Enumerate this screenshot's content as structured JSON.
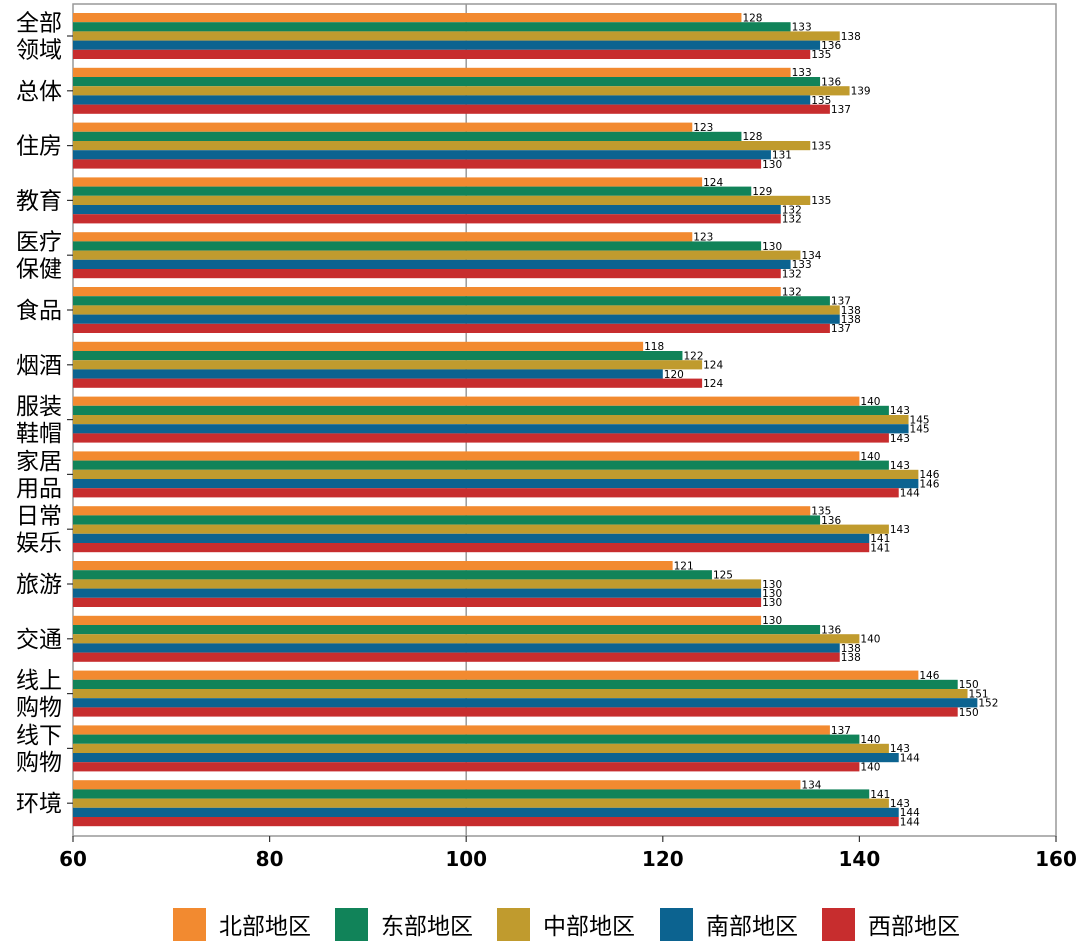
{
  "chart_data": {
    "type": "bar",
    "orientation": "horizontal",
    "title": "",
    "xlabel": "",
    "ylabel": "",
    "xlim": [
      60,
      160
    ],
    "xticks": [
      60,
      80,
      100,
      120,
      140,
      160
    ],
    "reference_line": 100,
    "grid": false,
    "legend_position": "bottom",
    "categories": [
      [
        "全部",
        "领域"
      ],
      [
        "总体"
      ],
      [
        "住房"
      ],
      [
        "教育"
      ],
      [
        "医疗",
        "保健"
      ],
      [
        "食品"
      ],
      [
        "烟酒"
      ],
      [
        "服装",
        "鞋帽"
      ],
      [
        "家居",
        "用品"
      ],
      [
        "日常",
        "娱乐"
      ],
      [
        "旅游"
      ],
      [
        "交通"
      ],
      [
        "线上",
        "购物"
      ],
      [
        "线下",
        "购物"
      ],
      [
        "环境"
      ]
    ],
    "series": [
      {
        "name": "北部地区",
        "color": "#F28A30",
        "values": [
          128,
          133,
          123,
          124,
          123,
          132,
          118,
          140,
          140,
          135,
          121,
          130,
          146,
          137,
          134
        ]
      },
      {
        "name": "东部地区",
        "color": "#118359",
        "values": [
          133,
          136,
          128,
          129,
          130,
          137,
          122,
          143,
          143,
          136,
          125,
          136,
          150,
          140,
          141
        ]
      },
      {
        "name": "中部地区",
        "color": "#C09B2E",
        "values": [
          138,
          139,
          135,
          135,
          134,
          138,
          124,
          145,
          146,
          143,
          130,
          140,
          151,
          143,
          143
        ]
      },
      {
        "name": "南部地区",
        "color": "#0C6390",
        "values": [
          136,
          135,
          131,
          132,
          133,
          138,
          120,
          145,
          146,
          141,
          130,
          138,
          152,
          144,
          144
        ]
      },
      {
        "name": "西部地区",
        "color": "#C72D2E",
        "values": [
          135,
          137,
          130,
          132,
          132,
          137,
          124,
          143,
          144,
          141,
          130,
          138,
          150,
          140,
          144
        ]
      }
    ]
  }
}
